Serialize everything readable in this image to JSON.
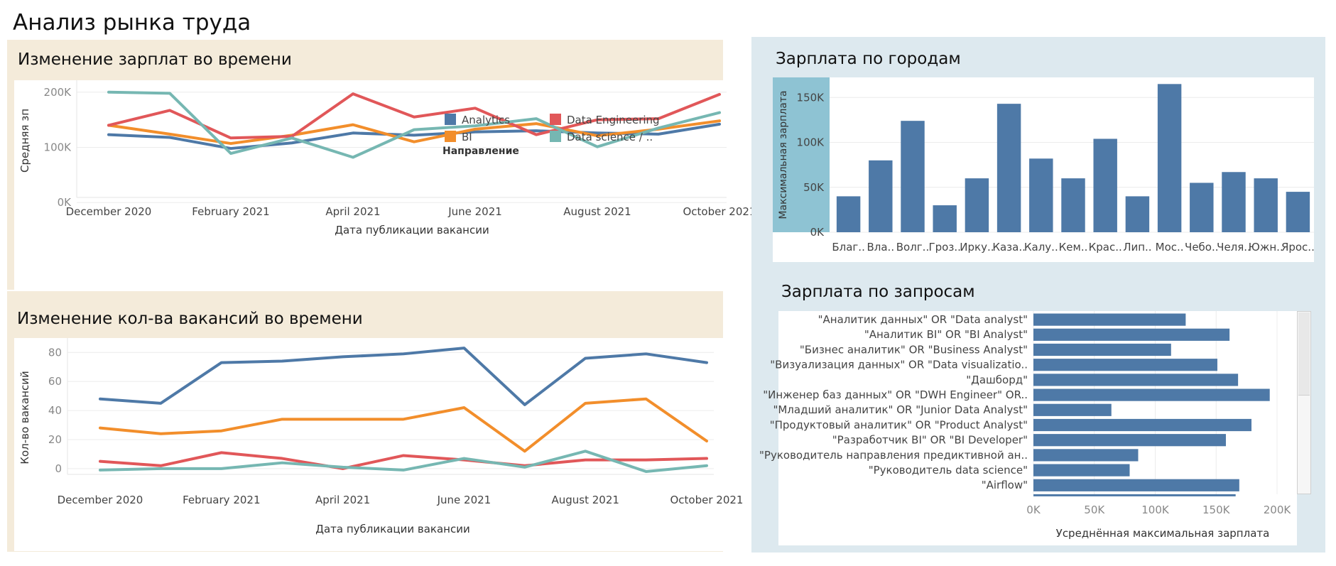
{
  "dashboard_title": "Анализ рынка труда",
  "colors": {
    "Analytics": "#4e79a7",
    "BI": "#f28e2b",
    "Data Engineering": "#e15759",
    "Data science / ..": "#76b7b2",
    "bar": "#4e79a7",
    "highlight": "#8ec3d3"
  },
  "legend": {
    "title": "Направление",
    "items": [
      "Analytics",
      "Data Engineering",
      "BI",
      "Data science / .."
    ]
  },
  "chart_data": [
    {
      "id": "salary_time",
      "type": "line",
      "title": "Изменение зарплат во времени",
      "xlabel": "Дата публикации вакансии",
      "ylabel": "Средняя зп",
      "x": [
        "2020-12",
        "2021-01",
        "2021-02",
        "2021-03",
        "2021-04",
        "2021-05",
        "2021-06",
        "2021-07",
        "2021-08",
        "2021-09",
        "2021-10"
      ],
      "x_ticks": [
        "December 2020",
        "February 2021",
        "April 2021",
        "June 2021",
        "August 2021",
        "October 2021"
      ],
      "y_ticks": [
        "0K",
        "100K",
        "200K"
      ],
      "ylim": [
        -10000,
        210000
      ],
      "series": [
        {
          "name": "Analytics",
          "values": [
            123000,
            118000,
            98000,
            108000,
            126000,
            122000,
            128000,
            130000,
            126000,
            124000,
            142000
          ]
        },
        {
          "name": "BI",
          "values": [
            140000,
            124000,
            107000,
            122000,
            141000,
            110000,
            133000,
            143000,
            121000,
            133000,
            148000
          ]
        },
        {
          "name": "Data Engineering",
          "values": [
            140000,
            167000,
            117000,
            120000,
            197000,
            155000,
            171000,
            123000,
            150000,
            152000,
            196000
          ]
        },
        {
          "name": "Data science / ..",
          "values": [
            200000,
            198000,
            89000,
            117000,
            82000,
            132000,
            139000,
            152000,
            101000,
            135000,
            163000
          ]
        }
      ]
    },
    {
      "id": "vacancies_time",
      "type": "line",
      "title": "Изменение кол-ва вакансий во времени",
      "xlabel": "Дата публикации вакансии",
      "ylabel": "Кол-во вакансий",
      "x": [
        "2020-12",
        "2021-01",
        "2021-02",
        "2021-03",
        "2021-04",
        "2021-05",
        "2021-06",
        "2021-07",
        "2021-08",
        "2021-09",
        "2021-10"
      ],
      "x_ticks": [
        "December 2020",
        "February 2021",
        "April 2021",
        "June 2021",
        "August 2021",
        "October 2021"
      ],
      "y_ticks": [
        "0",
        "20",
        "40",
        "60",
        "80"
      ],
      "ylim": [
        -3,
        86
      ],
      "series": [
        {
          "name": "Analytics",
          "values": [
            48,
            45,
            73,
            74,
            77,
            79,
            83,
            44,
            76,
            79,
            73
          ]
        },
        {
          "name": "BI",
          "values": [
            28,
            24,
            26,
            34,
            34,
            34,
            42,
            12,
            45,
            48,
            19
          ]
        },
        {
          "name": "Data Engineering",
          "values": [
            5,
            2,
            11,
            7,
            0,
            9,
            6,
            2,
            6,
            6,
            7
          ]
        },
        {
          "name": "Data science / ..",
          "values": [
            -1,
            0,
            0,
            4,
            1,
            -1,
            7,
            1,
            12,
            -2,
            2
          ]
        }
      ]
    },
    {
      "id": "salary_city",
      "type": "bar",
      "title": "Зарплата по городам",
      "ylabel": "Максимальная зарплата",
      "categories": [
        "Благ..",
        "Вла..",
        "Волг..",
        "Гроз..",
        "Ирку..",
        "Каза..",
        "Калу..",
        "Кем..",
        "Крас..",
        "Лип..",
        "Мос..",
        "Чебо..",
        "Челя..",
        "Южн..",
        "Ярос.."
      ],
      "values": [
        40000,
        80000,
        124000,
        30000,
        60000,
        143000,
        82000,
        60000,
        104000,
        40000,
        165000,
        55000,
        67000,
        60000,
        45000
      ],
      "y_ticks": [
        "0K",
        "50K",
        "100K",
        "150K"
      ],
      "ylim": [
        0,
        170000
      ]
    },
    {
      "id": "salary_query",
      "type": "bar",
      "orientation": "horizontal",
      "title": "Зарплата по запросам",
      "xlabel": "Усреднённая максимальная зарплата",
      "categories": [
        "\"Аналитик данных\" OR \"Data analyst\"",
        "\"Аналитик BI\" OR \"BI Analyst\"",
        "\"Бизнес аналитик\" OR \"Business Analyst\"",
        "\"Визуализация данных\" OR \"Data visualizatio..",
        "\"Дашборд\"",
        "\"Инженер баз данных\" OR \"DWH Engineer\" OR..",
        "\"Младший аналитик\" OR \"Junior Data Analyst\"",
        "\"Продуктовый аналитик\" OR \"Product Analyst\"",
        "\"Разработчик BI\" OR \"BI Developer\"",
        "\"Руководитель направления предиктивной ан..",
        "\"Руководитель data science\"",
        "\"Airflow\""
      ],
      "values": [
        125000,
        161000,
        113000,
        151000,
        168000,
        194000,
        64000,
        179000,
        158000,
        86000,
        79000,
        169000
      ],
      "x_ticks": [
        "0K",
        "50K",
        "100K",
        "150K",
        "200K"
      ],
      "xlim": [
        0,
        200000
      ]
    }
  ]
}
